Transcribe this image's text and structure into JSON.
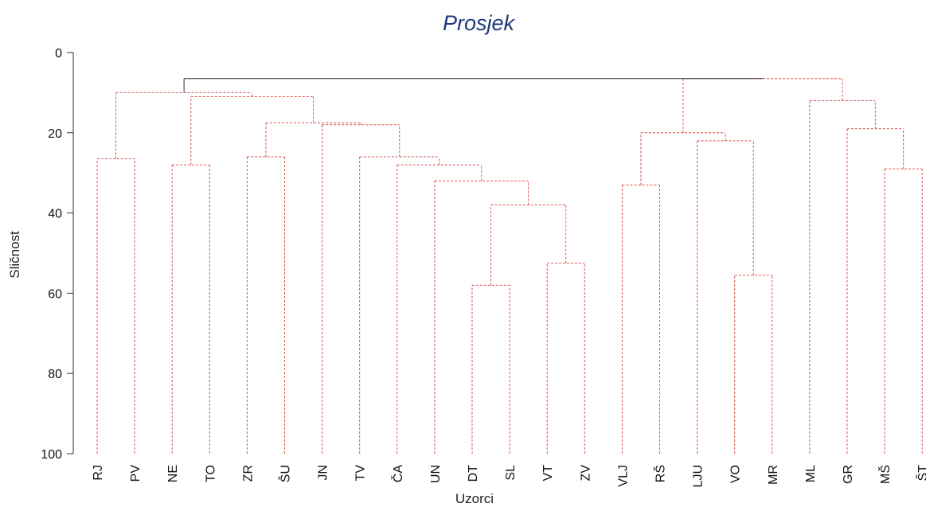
{
  "chart_data": {
    "type": "dendrogram",
    "title": "Prosjek",
    "xlabel": "Uzorci",
    "ylabel": "Sličnost",
    "ylim": [
      0,
      100
    ],
    "y_reversed": true,
    "yticks": [
      0,
      20,
      40,
      60,
      80,
      100
    ],
    "leaves": [
      "RJ",
      "PV",
      "NE",
      "TO",
      "ZR",
      "ŠU",
      "JN",
      "TV",
      "ČA",
      "UN",
      "DT",
      "SL",
      "VT",
      "ZV",
      "VLJ",
      "RŠ",
      "LJU",
      "VO",
      "MR",
      "ML",
      "GR",
      "MŠ",
      "ŠT"
    ],
    "merges": [
      {
        "left": "RJ",
        "right": "PV",
        "similarity": 26.5
      },
      {
        "left": "NE",
        "right": "TO",
        "similarity": 28
      },
      {
        "left": "ZR",
        "right": "ŠU",
        "similarity": 26
      },
      {
        "left": "DT",
        "right": "SL",
        "similarity": 58
      },
      {
        "left": "VT",
        "right": "ZV",
        "similarity": 52.5
      },
      {
        "left": "DT-SL",
        "right": "VT-ZV",
        "similarity": 38
      },
      {
        "left": "UN",
        "right": "DT-SL-VT-ZV",
        "similarity": 32
      },
      {
        "left": "ČA",
        "right": "UN-DT-SL-VT-ZV",
        "similarity": 28
      },
      {
        "left": "TV",
        "right": "ČA-UN-DT-SL-VT-ZV",
        "similarity": 26
      },
      {
        "left": "JN",
        "right": "TV-ČA-UN-DT-SL-VT-ZV",
        "similarity": 18
      },
      {
        "left": "ZR-ŠU",
        "right": "JN-TV-ČA-UN-DT-SL-VT-ZV",
        "similarity": 17.5
      },
      {
        "left": "NE-TO",
        "right": "ZR-ŠU-JN-TV-ČA-UN-DT-SL-VT-ZV",
        "similarity": 11
      },
      {
        "left": "RJ-PV",
        "right": "NE-TO-ZR-ŠU-JN-TV-ČA-UN-DT-SL-VT-ZV",
        "similarity": 10
      },
      {
        "left": "VLJ",
        "right": "RŠ",
        "similarity": 33
      },
      {
        "left": "VO",
        "right": "MR",
        "similarity": 55.5
      },
      {
        "left": "LJU",
        "right": "VO-MR",
        "similarity": 22
      },
      {
        "left": "VLJ-RŠ",
        "right": "LJU-VO-MR",
        "similarity": 20
      },
      {
        "left": "MŠ",
        "right": "ŠT",
        "similarity": 29
      },
      {
        "left": "GR",
        "right": "MŠ-ŠT",
        "similarity": 19
      },
      {
        "left": "ML",
        "right": "GR-MŠ-ŠT",
        "similarity": 12
      },
      {
        "left": "VLJ-RŠ-LJU-VO-MR",
        "right": "ML-GR-MŠ-ŠT",
        "similarity": 6.5
      },
      {
        "left": "RJ-…-ZV",
        "right": "VLJ-…-ŠT",
        "similarity": 6.5
      }
    ],
    "colors": {
      "branch": "#d9534f",
      "root": "#333333",
      "axis": "#333333",
      "title": "#1f3a7a"
    },
    "grid": false,
    "legend": "none"
  }
}
